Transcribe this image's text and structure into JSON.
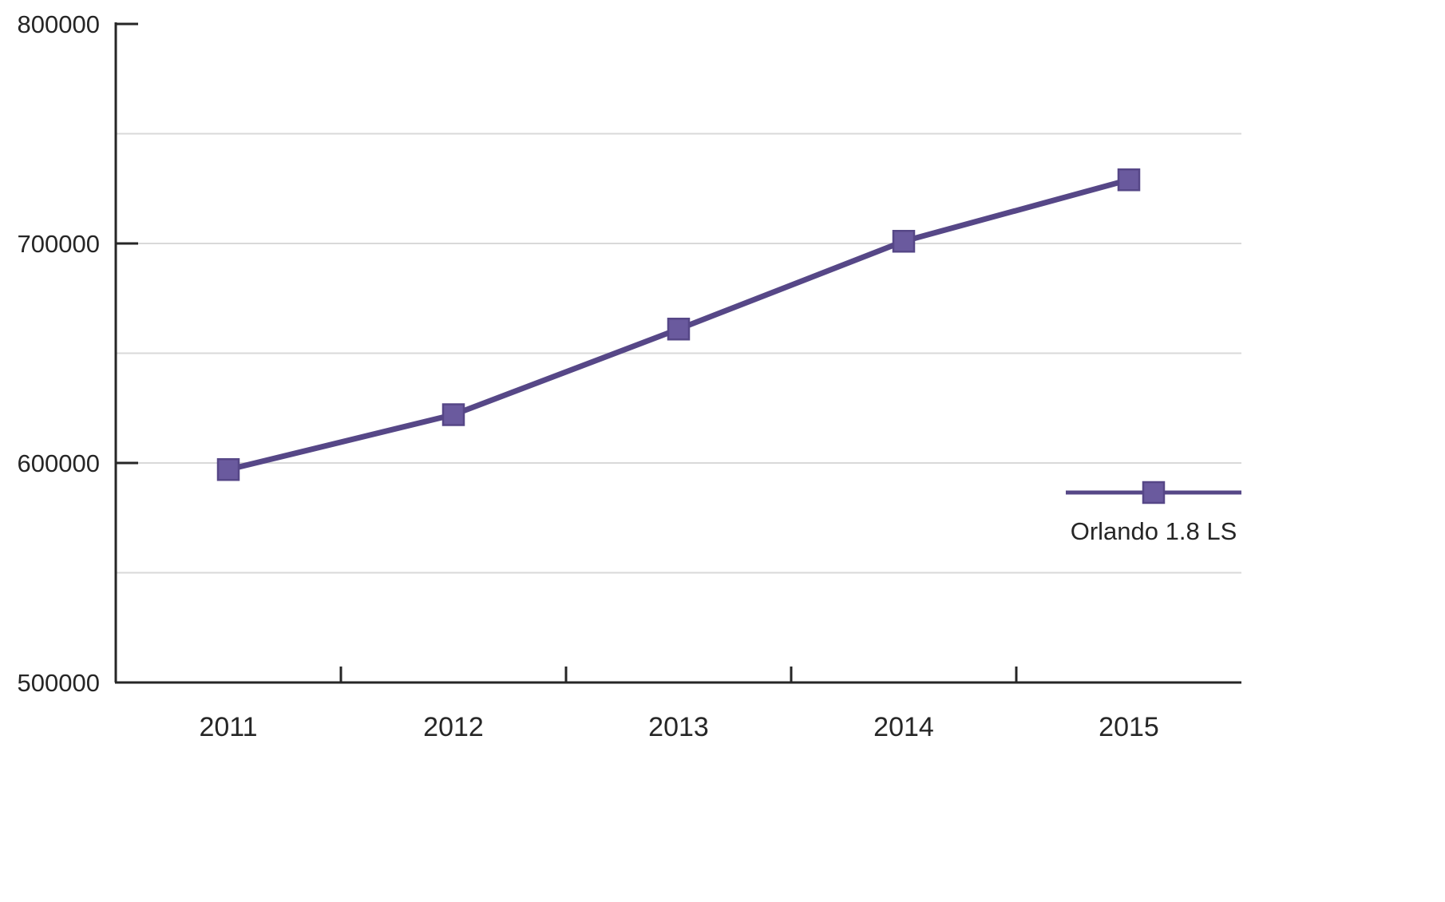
{
  "chart_data": {
    "type": "line",
    "title": "",
    "categories": [
      "2011",
      "2012",
      "2013",
      "2014",
      "2015"
    ],
    "series": [
      {
        "name": "Orlando 1.8 LS",
        "values": [
          597000,
          622000,
          661000,
          701000,
          729000
        ]
      }
    ],
    "xlabel": "",
    "ylabel": "",
    "ylim": [
      500000,
      800000
    ],
    "yticks": [
      {
        "value": 500000,
        "label": "500000"
      },
      {
        "value": 600000,
        "label": "600000"
      },
      {
        "value": 700000,
        "label": "700000"
      },
      {
        "value": 800000,
        "label": "800000"
      }
    ],
    "gridline_values": [
      550000,
      600000,
      650000,
      700000,
      750000
    ],
    "grid": true,
    "legend_position": "right-middle",
    "marker_shape": "square",
    "colors": {
      "line": "#564787",
      "marker_fill": "#6A5A9E",
      "grid": "#D9D9D9",
      "axis": "#262626",
      "text": "#262626",
      "background": "#FFFFFF"
    }
  },
  "legend": {
    "label": "Orlando 1.8 LS"
  }
}
